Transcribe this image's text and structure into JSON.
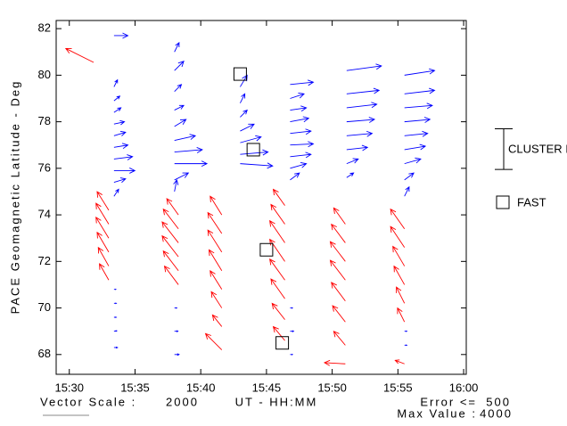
{
  "chart_data": {
    "type": "vector",
    "y_label": "PACE Geomagnetic Latitude - Deg",
    "x_label": "UT - HH:MM",
    "vector_scale_label": "Vector Scale :",
    "vector_scale": 2000,
    "error_label": "Error <=",
    "error": 500,
    "max_label": "Max Value :",
    "max_value": 4000,
    "xlim": [
      929,
      960.2
    ],
    "ylim": [
      67.15,
      82.35
    ],
    "xticks": [
      {
        "value": 930,
        "label": "15:30"
      },
      {
        "value": 935,
        "label": "15:35"
      },
      {
        "value": 940,
        "label": "15:40"
      },
      {
        "value": 945,
        "label": "15:45"
      },
      {
        "value": 950,
        "label": "15:50"
      },
      {
        "value": 955,
        "label": "15:55"
      },
      {
        "value": 960,
        "label": "16:00"
      }
    ],
    "yticks": [
      68,
      70,
      72,
      74,
      76,
      78,
      80,
      82
    ],
    "series": [
      {
        "color": "#ff0000",
        "vectors": [
          [
            933.0,
            71.2,
            -400,
            700
          ],
          [
            933.0,
            71.8,
            -450,
            800
          ],
          [
            933.0,
            72.4,
            -500,
            850
          ],
          [
            933.0,
            73.0,
            -550,
            900
          ],
          [
            933.0,
            73.6,
            -550,
            900
          ],
          [
            933.0,
            74.2,
            -500,
            800
          ],
          [
            938.3,
            71.0,
            -600,
            800
          ],
          [
            938.3,
            71.6,
            -650,
            850
          ],
          [
            938.3,
            72.2,
            -700,
            900
          ],
          [
            938.3,
            72.8,
            -700,
            900
          ],
          [
            938.3,
            73.4,
            -650,
            850
          ],
          [
            938.3,
            74.0,
            -500,
            700
          ],
          [
            941.6,
            68.2,
            -700,
            700
          ],
          [
            941.6,
            69.2,
            -400,
            500
          ],
          [
            941.6,
            70.0,
            -450,
            700
          ],
          [
            941.6,
            70.8,
            -500,
            800
          ],
          [
            941.6,
            71.6,
            -550,
            900
          ],
          [
            941.6,
            72.4,
            -600,
            950
          ],
          [
            941.6,
            73.2,
            -600,
            900
          ],
          [
            941.6,
            74.0,
            -500,
            800
          ],
          [
            946.4,
            68.6,
            -500,
            600
          ],
          [
            946.4,
            69.5,
            -550,
            700
          ],
          [
            946.4,
            70.4,
            -600,
            850
          ],
          [
            946.4,
            71.2,
            -650,
            900
          ],
          [
            946.4,
            72.0,
            -650,
            950
          ],
          [
            946.4,
            72.8,
            -650,
            950
          ],
          [
            946.4,
            73.6,
            -600,
            850
          ],
          [
            946.4,
            74.4,
            -500,
            700
          ],
          [
            951.0,
            67.6,
            -900,
            50
          ],
          [
            951.0,
            68.4,
            -500,
            600
          ],
          [
            951.0,
            69.4,
            -550,
            700
          ],
          [
            951.0,
            70.3,
            -600,
            800
          ],
          [
            951.0,
            71.2,
            -650,
            850
          ],
          [
            951.0,
            72.0,
            -650,
            850
          ],
          [
            951.0,
            72.8,
            -600,
            800
          ],
          [
            951.0,
            73.6,
            -500,
            700
          ],
          [
            955.5,
            67.6,
            -400,
            150
          ],
          [
            955.5,
            69.4,
            -300,
            600
          ],
          [
            955.5,
            70.2,
            -350,
            700
          ],
          [
            955.5,
            71.0,
            -450,
            800
          ],
          [
            955.5,
            71.8,
            -500,
            850
          ],
          [
            955.5,
            72.6,
            -600,
            900
          ],
          [
            955.5,
            73.4,
            -600,
            850
          ],
          [
            931.85,
            80.55,
            -1200,
            600
          ]
        ]
      },
      {
        "color": "#0000ff",
        "vectors": [
          [
            933.4,
            68.3,
            150,
            0
          ],
          [
            933.4,
            69.0,
            120,
            20
          ],
          [
            933.4,
            69.6,
            100,
            0
          ],
          [
            933.4,
            70.2,
            100,
            0
          ],
          [
            933.4,
            70.8,
            80,
            0
          ],
          [
            933.4,
            74.8,
            200,
            300
          ],
          [
            933.4,
            75.4,
            500,
            150
          ],
          [
            933.4,
            75.9,
            900,
            0
          ],
          [
            933.4,
            76.4,
            800,
            100
          ],
          [
            933.4,
            76.9,
            600,
            100
          ],
          [
            933.4,
            77.4,
            500,
            150
          ],
          [
            933.4,
            77.9,
            450,
            100
          ],
          [
            933.4,
            78.4,
            300,
            200
          ],
          [
            933.4,
            78.9,
            250,
            200
          ],
          [
            933.4,
            79.5,
            150,
            300
          ],
          [
            933.4,
            81.7,
            600,
            0
          ],
          [
            938.0,
            68.0,
            200,
            0
          ],
          [
            938.0,
            69.0,
            150,
            0
          ],
          [
            938.0,
            70.0,
            100,
            0
          ],
          [
            938.0,
            75.0,
            100,
            500
          ],
          [
            938.0,
            75.5,
            600,
            300
          ],
          [
            938.0,
            76.2,
            1400,
            0
          ],
          [
            938.0,
            76.7,
            1200,
            100
          ],
          [
            938.0,
            77.2,
            900,
            200
          ],
          [
            938.0,
            77.8,
            500,
            300
          ],
          [
            938.0,
            78.5,
            400,
            200
          ],
          [
            938.0,
            79.3,
            300,
            300
          ],
          [
            938.0,
            80.2,
            400,
            400
          ],
          [
            938.0,
            81.0,
            200,
            400
          ],
          [
            943.0,
            76.2,
            1400,
            -100
          ],
          [
            943.0,
            76.6,
            1200,
            100
          ],
          [
            943.0,
            77.1,
            900,
            250
          ],
          [
            943.0,
            77.6,
            600,
            300
          ],
          [
            943.0,
            78.2,
            300,
            300
          ],
          [
            943.0,
            78.8,
            200,
            400
          ],
          [
            943.0,
            79.5,
            300,
            500
          ],
          [
            946.8,
            68.0,
            100,
            0
          ],
          [
            946.8,
            69.0,
            150,
            0
          ],
          [
            946.8,
            70.0,
            100,
            0
          ],
          [
            946.8,
            75.5,
            400,
            300
          ],
          [
            946.8,
            76.0,
            700,
            200
          ],
          [
            946.8,
            76.5,
            900,
            100
          ],
          [
            946.8,
            77.0,
            1000,
            50
          ],
          [
            946.8,
            77.5,
            900,
            100
          ],
          [
            946.8,
            78.0,
            800,
            150
          ],
          [
            946.8,
            78.5,
            700,
            100
          ],
          [
            946.8,
            79.0,
            600,
            200
          ],
          [
            946.8,
            79.6,
            1000,
            100
          ],
          [
            951.1,
            75.6,
            300,
            200
          ],
          [
            951.1,
            76.2,
            500,
            200
          ],
          [
            951.1,
            76.8,
            900,
            100
          ],
          [
            951.1,
            77.4,
            1100,
            100
          ],
          [
            951.1,
            78.0,
            1200,
            100
          ],
          [
            951.1,
            78.6,
            1300,
            150
          ],
          [
            951.1,
            79.2,
            1400,
            150
          ],
          [
            951.1,
            80.2,
            1500,
            200
          ],
          [
            955.5,
            68.4,
            100,
            0
          ],
          [
            955.5,
            69.0,
            100,
            0
          ],
          [
            955.5,
            74.8,
            200,
            400
          ],
          [
            955.5,
            75.5,
            400,
            300
          ],
          [
            955.5,
            76.2,
            700,
            200
          ],
          [
            955.5,
            76.8,
            900,
            150
          ],
          [
            955.5,
            77.4,
            1000,
            100
          ],
          [
            955.5,
            78.0,
            1100,
            100
          ],
          [
            955.5,
            78.6,
            1200,
            100
          ],
          [
            955.5,
            79.2,
            1300,
            150
          ],
          [
            955.5,
            80.0,
            1300,
            200
          ]
        ]
      }
    ],
    "fast_positions": [
      [
        943.0,
        80.05
      ],
      [
        944.0,
        76.8
      ],
      [
        945.0,
        72.5
      ],
      [
        946.2,
        68.5
      ]
    ],
    "cluster_range": [
      75.95,
      77.7
    ],
    "legend": {
      "cluster": "CLUSTER I",
      "fast": "FAST"
    }
  }
}
